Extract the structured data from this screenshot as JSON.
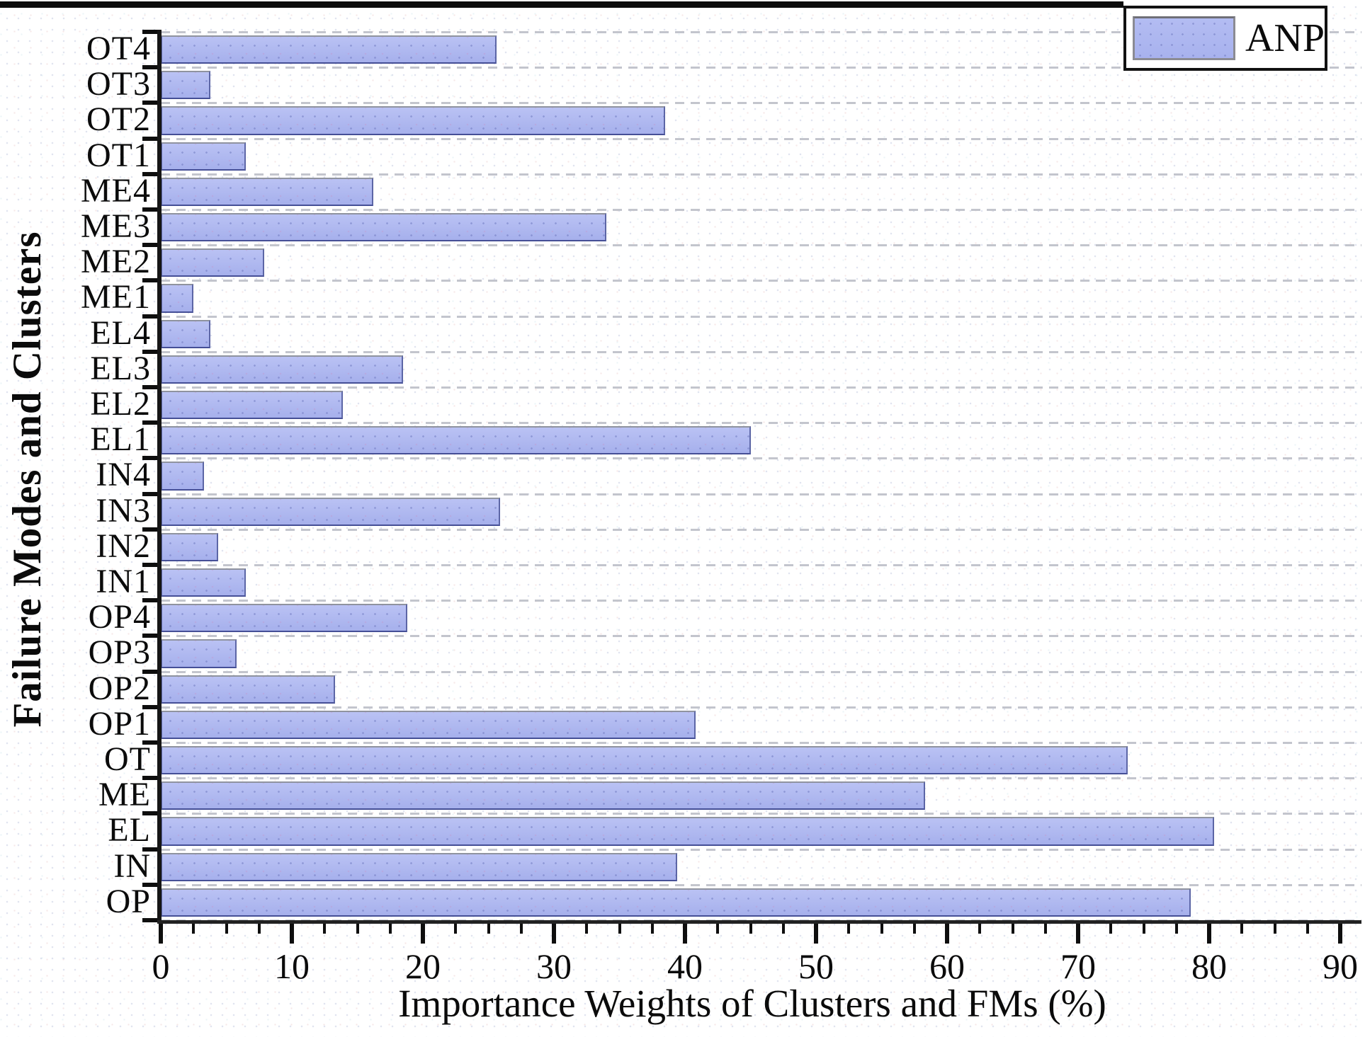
{
  "legend": {
    "label": "ANP"
  },
  "axes": {
    "x_title": "Importance Weights of Clusters and FMs (%)",
    "y_title": "Failure Modes and Clusters"
  },
  "colors": {
    "bar_fill": "#aab3ee",
    "bar_border": "#5c66a6",
    "grid": "#c3c5cd",
    "axis": "#161616",
    "legend_border": "#111111",
    "background": "#ffffff"
  },
  "chart_data": {
    "type": "bar",
    "orientation": "horizontal",
    "title": "",
    "xlabel": "Importance Weights of Clusters and FMs (%)",
    "ylabel": "Failure Modes and Clusters",
    "xlim": [
      0,
      90
    ],
    "x_tick_labels": [
      "0",
      "10",
      "20",
      "30",
      "40",
      "50",
      "60",
      "70",
      "80",
      "90"
    ],
    "x_tick_step": 10,
    "x_minor_tick_step": 2.5,
    "grid": "horizontal dashed",
    "legend_position": "top-right",
    "legend_entries": [
      "ANP"
    ],
    "series": [
      {
        "name": "ANP",
        "color": "#aab3ee",
        "categories_top_to_bottom": [
          "OT4",
          "OT3",
          "OT2",
          "OT1",
          "ME4",
          "ME3",
          "ME2",
          "ME1",
          "EL4",
          "EL3",
          "EL2",
          "EL1",
          "IN4",
          "IN3",
          "IN2",
          "IN1",
          "OP4",
          "OP3",
          "OP2",
          "OP1",
          "OT",
          "ME",
          "EL",
          "IN",
          "OP"
        ],
        "values_percent": [
          25.6,
          3.8,
          38.5,
          6.5,
          16.2,
          34.0,
          7.9,
          2.5,
          3.8,
          18.5,
          13.9,
          45.0,
          3.3,
          25.9,
          4.4,
          6.5,
          18.8,
          5.8,
          13.3,
          40.8,
          73.8,
          58.3,
          80.4,
          39.4,
          78.6
        ]
      }
    ]
  }
}
